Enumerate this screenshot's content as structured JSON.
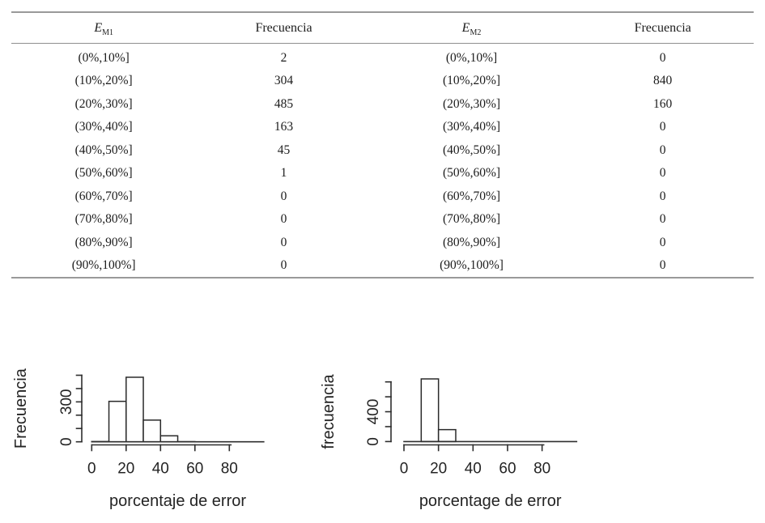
{
  "table": {
    "columns": [
      {
        "label": "E",
        "subscript": "M1"
      },
      {
        "label": "Frecuencia",
        "subscript": ""
      },
      {
        "label": "E",
        "subscript": "M2"
      },
      {
        "label": "Frecuencia",
        "subscript": ""
      }
    ],
    "rows": [
      [
        "(0%,10%]",
        "2",
        "(0%,10%]",
        "0"
      ],
      [
        "(10%,20%]",
        "304",
        "(10%,20%]",
        "840"
      ],
      [
        "(20%,30%]",
        "485",
        "(20%,30%]",
        "160"
      ],
      [
        "(30%,40%]",
        "163",
        "(30%,40%]",
        "0"
      ],
      [
        "(40%,50%]",
        "45",
        "(40%,50%]",
        "0"
      ],
      [
        "(50%,60%]",
        "1",
        "(50%,60%]",
        "0"
      ],
      [
        "(60%,70%]",
        "0",
        "(60%,70%]",
        "0"
      ],
      [
        "(70%,80%]",
        "0",
        "(70%,80%]",
        "0"
      ],
      [
        "(80%,90%]",
        "0",
        "(80%,90%]",
        "0"
      ],
      [
        "(90%,100%]",
        "0",
        "(90%,100%]",
        "0"
      ]
    ]
  },
  "chart_data": [
    {
      "type": "bar",
      "subtype": "histogram",
      "name": "histogram-EM1",
      "title": "",
      "xlabel": "porcentaje de error",
      "ylabel": "Frecuencia",
      "bins": [
        "(0,10]",
        "(10,20]",
        "(20,30]",
        "(30,40]",
        "(40,50]",
        "(50,60]",
        "(60,70]",
        "(70,80]",
        "(80,90]",
        "(90,100]"
      ],
      "values": [
        2,
        304,
        485,
        163,
        45,
        1,
        0,
        0,
        0,
        0
      ],
      "xlim": [
        0,
        100
      ],
      "ylim": [
        0,
        500
      ],
      "x_ticks": [
        0,
        20,
        40,
        60,
        80
      ],
      "y_ticks": [
        0,
        100,
        200,
        300,
        400,
        500
      ],
      "y_tick_labels": [
        "0",
        "",
        "",
        "300",
        "",
        ""
      ],
      "grid": false,
      "legend": "none"
    },
    {
      "type": "bar",
      "subtype": "histogram",
      "name": "histogram-EM2",
      "title": "",
      "xlabel": "porcentage de error",
      "ylabel": "frecuencia",
      "bins": [
        "(0,10]",
        "(10,20]",
        "(20,30]",
        "(30,40]",
        "(40,50]",
        "(50,60]",
        "(60,70]",
        "(70,80]",
        "(80,90]",
        "(90,100]"
      ],
      "values": [
        0,
        840,
        160,
        0,
        0,
        0,
        0,
        0,
        0,
        0
      ],
      "xlim": [
        0,
        100
      ],
      "ylim": [
        0,
        800
      ],
      "x_ticks": [
        0,
        20,
        40,
        60,
        80
      ],
      "y_ticks": [
        0,
        200,
        400,
        600,
        800
      ],
      "y_tick_labels": [
        "0",
        "",
        "400",
        "",
        ""
      ],
      "grid": false,
      "legend": "none"
    }
  ],
  "colors": {
    "background": "#ffffff",
    "table_rule": "#9a9a9a",
    "text": "#1c1c1c",
    "axis_stroke": "#2e2e2e",
    "bar_fill": "#ffffff"
  }
}
